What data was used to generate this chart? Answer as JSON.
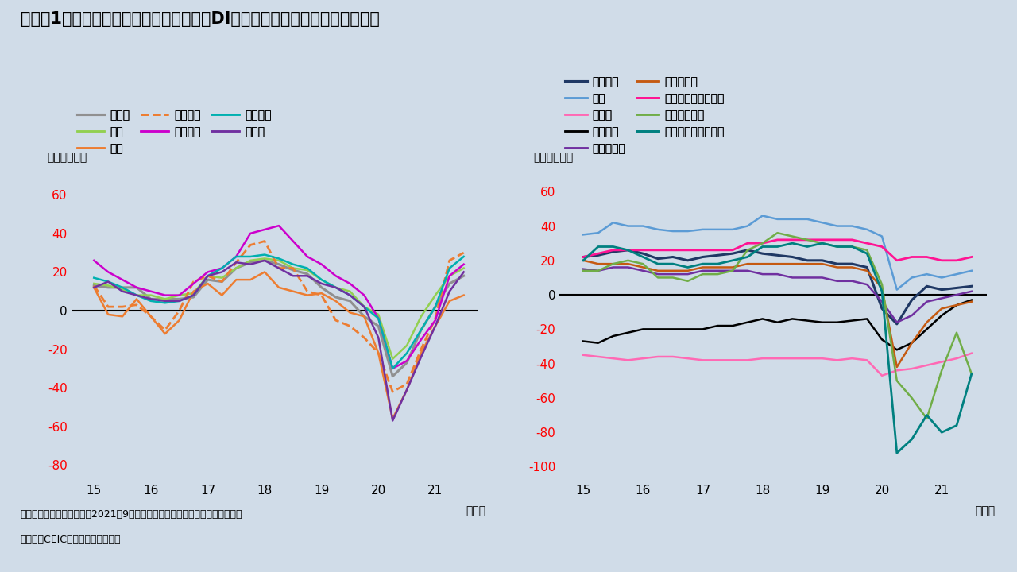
{
  "title": "（図表1）日本：日銀短観による業況判断DI（最近）の推移（大企業ベース）",
  "footnote1": "（注）四半期ごとの計数。2021年9月分は業況判断（先行き）の計数を表示。",
  "footnote2": "（出所）CEICよりインベスコ作成",
  "background_color": "#d0dce8",
  "ylabel": "（ポイント）",
  "xlabel": "（年）",
  "x_ticks": [
    15,
    16,
    17,
    18,
    19,
    20,
    21
  ],
  "n_quarters": 27,
  "left_ylim": [
    -88,
    75
  ],
  "left_yticks": [
    -80,
    -60,
    -40,
    -20,
    0,
    20,
    40,
    60
  ],
  "right_ylim": [
    -108,
    75
  ],
  "right_yticks": [
    -100,
    -80,
    -60,
    -40,
    -20,
    0,
    20,
    40,
    60
  ],
  "left_series": [
    {
      "name": "製造業",
      "color": "#909090",
      "linestyle": "-",
      "linewidth": 2.2,
      "values": [
        13,
        12,
        12,
        12,
        6,
        6,
        6,
        7,
        16,
        15,
        22,
        25,
        26,
        24,
        21,
        19,
        12,
        7,
        5,
        -3,
        -8,
        -34,
        -27,
        -10,
        2,
        14,
        18
      ]
    },
    {
      "name": "化学",
      "color": "#92d050",
      "linestyle": "-",
      "linewidth": 1.8,
      "values": [
        14,
        13,
        11,
        8,
        8,
        6,
        8,
        9,
        18,
        17,
        22,
        26,
        27,
        26,
        22,
        21,
        16,
        12,
        10,
        2,
        -2,
        -25,
        -18,
        -3,
        8,
        18,
        22
      ]
    },
    {
      "name": "鉄鋼",
      "color": "#ed7d31",
      "linestyle": "-",
      "linewidth": 1.8,
      "values": [
        12,
        -2,
        -3,
        6,
        -3,
        -12,
        -5,
        10,
        14,
        8,
        16,
        16,
        20,
        12,
        10,
        8,
        9,
        5,
        -1,
        -3,
        -22,
        -56,
        -41,
        -22,
        -8,
        5,
        8
      ]
    },
    {
      "name": "非鉄金属",
      "color": "#ed7d31",
      "linestyle": "--",
      "linewidth": 2.0,
      "values": [
        13,
        2,
        2,
        3,
        -3,
        -10,
        0,
        15,
        18,
        15,
        25,
        34,
        36,
        22,
        22,
        10,
        8,
        -5,
        -8,
        -14,
        -22,
        -42,
        -38,
        -20,
        -4,
        26,
        30
      ]
    },
    {
      "name": "一般機械",
      "color": "#cc00cc",
      "linestyle": "-",
      "linewidth": 1.8,
      "values": [
        26,
        20,
        16,
        12,
        10,
        8,
        8,
        14,
        20,
        22,
        28,
        40,
        42,
        44,
        36,
        28,
        24,
        18,
        14,
        8,
        -4,
        -30,
        -26,
        -15,
        -5,
        18,
        24
      ]
    },
    {
      "name": "電気機械",
      "color": "#00b0b0",
      "linestyle": "-",
      "linewidth": 1.8,
      "values": [
        17,
        15,
        12,
        8,
        5,
        4,
        5,
        8,
        18,
        22,
        28,
        28,
        29,
        27,
        24,
        22,
        16,
        12,
        8,
        2,
        -4,
        -30,
        -22,
        -10,
        2,
        22,
        28
      ]
    },
    {
      "name": "自動車",
      "color": "#7030a0",
      "linestyle": "-",
      "linewidth": 1.8,
      "values": [
        12,
        15,
        10,
        8,
        6,
        5,
        5,
        8,
        18,
        20,
        25,
        24,
        26,
        22,
        18,
        18,
        14,
        12,
        8,
        2,
        -14,
        -57,
        -41,
        -24,
        -8,
        10,
        20
      ]
    }
  ],
  "right_series": [
    {
      "name": "非製造業",
      "color": "#1f3864",
      "linestyle": "-",
      "linewidth": 2.2,
      "values": [
        22,
        23,
        25,
        26,
        24,
        21,
        22,
        20,
        22,
        23,
        24,
        26,
        24,
        23,
        22,
        20,
        20,
        18,
        18,
        16,
        -8,
        -17,
        -3,
        5,
        3,
        4,
        5
      ]
    },
    {
      "name": "不動産",
      "color": "#ff69b4",
      "linestyle": "-",
      "linewidth": 1.8,
      "values": [
        -35,
        -36,
        -37,
        -38,
        -37,
        -36,
        -36,
        -37,
        -38,
        -38,
        -38,
        -38,
        -37,
        -37,
        -37,
        -37,
        -37,
        -38,
        -37,
        -38,
        -47,
        -44,
        -43,
        -41,
        -39,
        -37,
        -34
      ]
    },
    {
      "name": "建設",
      "color": "#5b9bd5",
      "linestyle": "-",
      "linewidth": 1.8,
      "values": [
        35,
        36,
        42,
        40,
        40,
        38,
        37,
        37,
        38,
        38,
        38,
        40,
        46,
        44,
        44,
        44,
        42,
        40,
        40,
        38,
        34,
        3,
        10,
        12,
        10,
        12,
        14
      ]
    },
    {
      "name": "物品賃貸",
      "color": "#000000",
      "linestyle": "-",
      "linewidth": 1.8,
      "values": [
        -27,
        -28,
        -24,
        -22,
        -20,
        -20,
        -20,
        -20,
        -20,
        -18,
        -18,
        -16,
        -14,
        -16,
        -14,
        -15,
        -16,
        -16,
        -15,
        -14,
        -26,
        -32,
        -28,
        -20,
        -12,
        -6,
        -3
      ]
    },
    {
      "name": "卸売・小売",
      "color": "#7030a0",
      "linestyle": "-",
      "linewidth": 1.8,
      "values": [
        15,
        14,
        16,
        16,
        14,
        12,
        12,
        12,
        14,
        14,
        14,
        14,
        12,
        12,
        10,
        10,
        10,
        8,
        8,
        6,
        -4,
        -16,
        -12,
        -4,
        -2,
        0,
        2
      ]
    },
    {
      "name": "運輸・郵便",
      "color": "#c55a11",
      "linestyle": "-",
      "linewidth": 1.8,
      "values": [
        20,
        18,
        18,
        18,
        16,
        14,
        14,
        14,
        16,
        16,
        16,
        18,
        18,
        18,
        18,
        18,
        18,
        16,
        16,
        14,
        4,
        -42,
        -28,
        -16,
        -8,
        -6,
        -4
      ]
    },
    {
      "name": "通信・情報サービス",
      "color": "#ff1493",
      "linestyle": "-",
      "linewidth": 2.0,
      "values": [
        22,
        24,
        26,
        26,
        26,
        26,
        26,
        26,
        26,
        26,
        26,
        30,
        30,
        32,
        32,
        32,
        32,
        32,
        32,
        30,
        28,
        20,
        22,
        22,
        20,
        20,
        22
      ]
    },
    {
      "name": "対人サービス",
      "color": "#70ad47",
      "linestyle": "-",
      "linewidth": 1.8,
      "values": [
        14,
        14,
        18,
        20,
        18,
        10,
        10,
        8,
        12,
        12,
        14,
        26,
        30,
        36,
        34,
        32,
        30,
        28,
        28,
        26,
        6,
        -50,
        -60,
        -72,
        -44,
        -22,
        -46
      ]
    },
    {
      "name": "宿泊・飲食サービス",
      "color": "#008080",
      "linestyle": "-",
      "linewidth": 2.0,
      "values": [
        20,
        28,
        28,
        26,
        22,
        18,
        18,
        16,
        18,
        18,
        20,
        22,
        28,
        28,
        30,
        28,
        30,
        28,
        28,
        24,
        2,
        -92,
        -84,
        -70,
        -80,
        -76,
        -46
      ]
    }
  ]
}
